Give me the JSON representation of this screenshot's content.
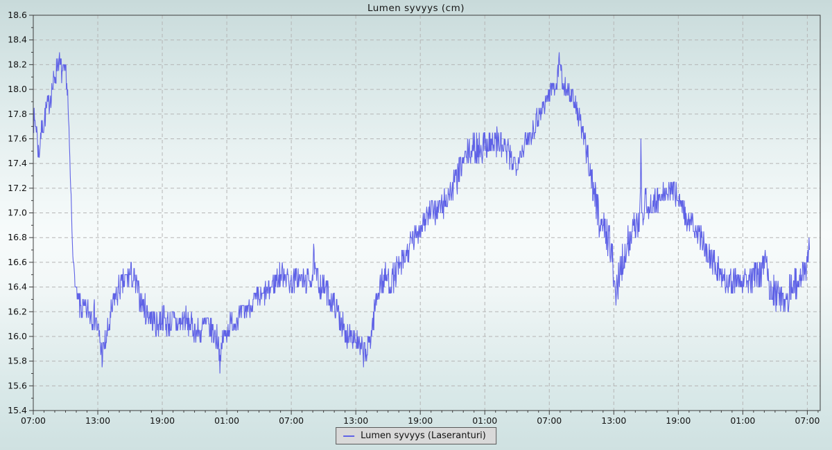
{
  "page": {
    "title": "Lumen syvyys (cm)"
  },
  "legend": {
    "label": "Lumen syvyys (Laseranturi)"
  },
  "colors": {
    "series": "#5f62e6",
    "grid": "#b5b5b5",
    "border": "#3c3c3c",
    "text": "#111111",
    "legend_bg": "#d9d9d9",
    "legend_border": "#585858"
  },
  "chart_data": {
    "type": "line",
    "title": "Lumen syvyys (cm)",
    "xlabel": "",
    "ylabel": "",
    "grid": "major-dashed",
    "legend_position": "bottom-center",
    "y_axis": {
      "min": 15.4,
      "max": 18.6,
      "major_step": 0.2,
      "minor_step": 0.1,
      "tick_labels": [
        "15.4",
        "15.6",
        "15.8",
        "16.0",
        "16.2",
        "16.4",
        "16.6",
        "16.8",
        "17.0",
        "17.2",
        "17.4",
        "17.6",
        "17.8",
        "18.0",
        "18.2",
        "18.4",
        "18.6"
      ]
    },
    "x_axis": {
      "range_hours": 73.2,
      "major_step_hours": 6,
      "minor_step_hours": 1,
      "tick_labels": [
        "07:00",
        "13:00",
        "19:00",
        "01:00",
        "07:00",
        "13:00",
        "19:00",
        "01:00",
        "07:00",
        "13:00",
        "19:00",
        "01:00",
        "07:00"
      ]
    },
    "series": [
      {
        "name": "Lumen syvyys (Laseranturi)",
        "color": "#5f62e6",
        "quantize_step": 0.05,
        "sample_step_hours": 0.04,
        "clamp": [
          15.7,
          18.3
        ],
        "noise_seed": 7,
        "noise_segments": [
          [
            0,
            0.1
          ],
          [
            3.1,
            0.06
          ],
          [
            4.2,
            0.12
          ],
          [
            7.0,
            0.11
          ],
          [
            17.7,
            0.09
          ],
          [
            21.5,
            0.1
          ],
          [
            26.3,
            0.11
          ],
          [
            31.6,
            0.12
          ],
          [
            34,
            0.11
          ],
          [
            38,
            0.12
          ],
          [
            41,
            0.13
          ],
          [
            45,
            0.1
          ],
          [
            47.5,
            0.08
          ],
          [
            50,
            0.1
          ],
          [
            51.8,
            0.16
          ],
          [
            54.6,
            0.13
          ],
          [
            57,
            0.11
          ],
          [
            60.3,
            0.1
          ],
          [
            64,
            0.12
          ],
          [
            68.3,
            0.14
          ],
          [
            71,
            0.11
          ]
        ],
        "trend_points": [
          [
            0,
            17.75
          ],
          [
            0.3,
            17.7
          ],
          [
            0.5,
            17.45
          ],
          [
            0.7,
            17.65
          ],
          [
            1.0,
            17.75
          ],
          [
            1.3,
            17.85
          ],
          [
            1.6,
            17.95
          ],
          [
            1.9,
            18.05
          ],
          [
            2.15,
            18.15
          ],
          [
            2.35,
            18.25
          ],
          [
            2.55,
            18.15
          ],
          [
            2.8,
            18.12
          ],
          [
            3.05,
            18.12
          ],
          [
            3.2,
            17.95
          ],
          [
            3.35,
            17.55
          ],
          [
            3.5,
            17.15
          ],
          [
            3.65,
            16.75
          ],
          [
            3.8,
            16.5
          ],
          [
            4.0,
            16.35
          ],
          [
            4.3,
            16.25
          ],
          [
            4.8,
            16.2
          ],
          [
            5.3,
            16.2
          ],
          [
            5.8,
            16.15
          ],
          [
            6.1,
            16.0
          ],
          [
            6.4,
            15.84
          ],
          [
            6.6,
            15.9
          ],
          [
            7.0,
            16.05
          ],
          [
            7.5,
            16.3
          ],
          [
            8.0,
            16.38
          ],
          [
            8.6,
            16.45
          ],
          [
            9.0,
            16.5
          ],
          [
            9.4,
            16.45
          ],
          [
            10.0,
            16.3
          ],
          [
            10.5,
            16.2
          ],
          [
            11.0,
            16.15
          ],
          [
            11.5,
            16.1
          ],
          [
            12.0,
            16.15
          ],
          [
            12.5,
            16.1
          ],
          [
            13.0,
            16.12
          ],
          [
            13.5,
            16.08
          ],
          [
            14.0,
            16.15
          ],
          [
            14.5,
            16.1
          ],
          [
            15.0,
            16.05
          ],
          [
            15.5,
            16.02
          ],
          [
            16.0,
            16.1
          ],
          [
            16.5,
            16.05
          ],
          [
            17.0,
            16.0
          ],
          [
            17.2,
            16.0
          ],
          [
            17.4,
            15.74
          ],
          [
            17.6,
            15.98
          ],
          [
            18.3,
            16.1
          ],
          [
            19.0,
            16.15
          ],
          [
            19.8,
            16.22
          ],
          [
            20.5,
            16.28
          ],
          [
            21.2,
            16.32
          ],
          [
            22.0,
            16.38
          ],
          [
            22.8,
            16.48
          ],
          [
            23.4,
            16.52
          ],
          [
            24.0,
            16.42
          ],
          [
            24.5,
            16.48
          ],
          [
            25.0,
            16.45
          ],
          [
            25.6,
            16.45
          ],
          [
            26.0,
            16.5
          ],
          [
            26.08,
            16.68
          ],
          [
            26.2,
            16.5
          ],
          [
            26.7,
            16.42
          ],
          [
            27.2,
            16.38
          ],
          [
            27.7,
            16.3
          ],
          [
            28.2,
            16.22
          ],
          [
            28.7,
            16.12
          ],
          [
            29.06,
            15.95
          ],
          [
            29.3,
            16.05
          ],
          [
            29.7,
            16.02
          ],
          [
            30.0,
            15.98
          ],
          [
            30.4,
            15.88
          ],
          [
            31.0,
            15.86
          ],
          [
            31.4,
            16.0
          ],
          [
            31.8,
            16.25
          ],
          [
            32.2,
            16.42
          ],
          [
            32.8,
            16.48
          ],
          [
            33.3,
            16.45
          ],
          [
            33.8,
            16.52
          ],
          [
            34.4,
            16.6
          ],
          [
            35.0,
            16.72
          ],
          [
            35.6,
            16.82
          ],
          [
            36.2,
            16.92
          ],
          [
            36.8,
            17.0
          ],
          [
            37.4,
            17.02
          ],
          [
            38.0,
            17.05
          ],
          [
            38.5,
            17.12
          ],
          [
            39.0,
            17.2
          ],
          [
            39.5,
            17.3
          ],
          [
            40.0,
            17.42
          ],
          [
            40.6,
            17.5
          ],
          [
            41.2,
            17.52
          ],
          [
            41.8,
            17.55
          ],
          [
            42.3,
            17.58
          ],
          [
            42.8,
            17.55
          ],
          [
            43.3,
            17.58
          ],
          [
            43.8,
            17.52
          ],
          [
            44.3,
            17.45
          ],
          [
            44.8,
            17.4
          ],
          [
            45.3,
            17.48
          ],
          [
            45.9,
            17.58
          ],
          [
            46.5,
            17.68
          ],
          [
            47.1,
            17.8
          ],
          [
            47.7,
            17.92
          ],
          [
            48.2,
            18.0
          ],
          [
            48.7,
            18.05
          ],
          [
            48.97,
            18.28
          ],
          [
            49.2,
            18.05
          ],
          [
            49.7,
            18.0
          ],
          [
            50.2,
            17.92
          ],
          [
            50.7,
            17.8
          ],
          [
            51.2,
            17.6
          ],
          [
            51.7,
            17.4
          ],
          [
            52.2,
            17.15
          ],
          [
            52.7,
            16.95
          ],
          [
            53.2,
            16.85
          ],
          [
            53.6,
            16.8
          ],
          [
            54.0,
            16.5
          ],
          [
            54.2,
            16.3
          ],
          [
            54.5,
            16.5
          ],
          [
            54.9,
            16.65
          ],
          [
            55.4,
            16.78
          ],
          [
            55.9,
            16.88
          ],
          [
            56.3,
            16.95
          ],
          [
            56.44,
            16.95
          ],
          [
            56.52,
            17.58
          ],
          [
            56.6,
            16.95
          ],
          [
            56.85,
            17.0
          ],
          [
            56.95,
            17.3
          ],
          [
            57.1,
            17.0
          ],
          [
            57.6,
            17.08
          ],
          [
            58.2,
            17.1
          ],
          [
            58.8,
            17.15
          ],
          [
            59.4,
            17.18
          ],
          [
            60.0,
            17.15
          ],
          [
            60.5,
            17.02
          ],
          [
            61.0,
            16.92
          ],
          [
            61.6,
            16.85
          ],
          [
            62.2,
            16.78
          ],
          [
            62.8,
            16.68
          ],
          [
            63.4,
            16.58
          ],
          [
            64.0,
            16.5
          ],
          [
            64.6,
            16.46
          ],
          [
            65.2,
            16.46
          ],
          [
            65.8,
            16.5
          ],
          [
            66.4,
            16.45
          ],
          [
            67.0,
            16.46
          ],
          [
            67.6,
            16.5
          ],
          [
            68.1,
            16.6
          ],
          [
            68.5,
            16.42
          ],
          [
            69.0,
            16.35
          ],
          [
            69.5,
            16.3
          ],
          [
            70.0,
            16.33
          ],
          [
            70.6,
            16.4
          ],
          [
            71.2,
            16.48
          ],
          [
            71.7,
            16.52
          ],
          [
            72.0,
            16.6
          ],
          [
            72.15,
            16.75
          ],
          [
            72.2,
            16.78
          ]
        ]
      }
    ]
  }
}
